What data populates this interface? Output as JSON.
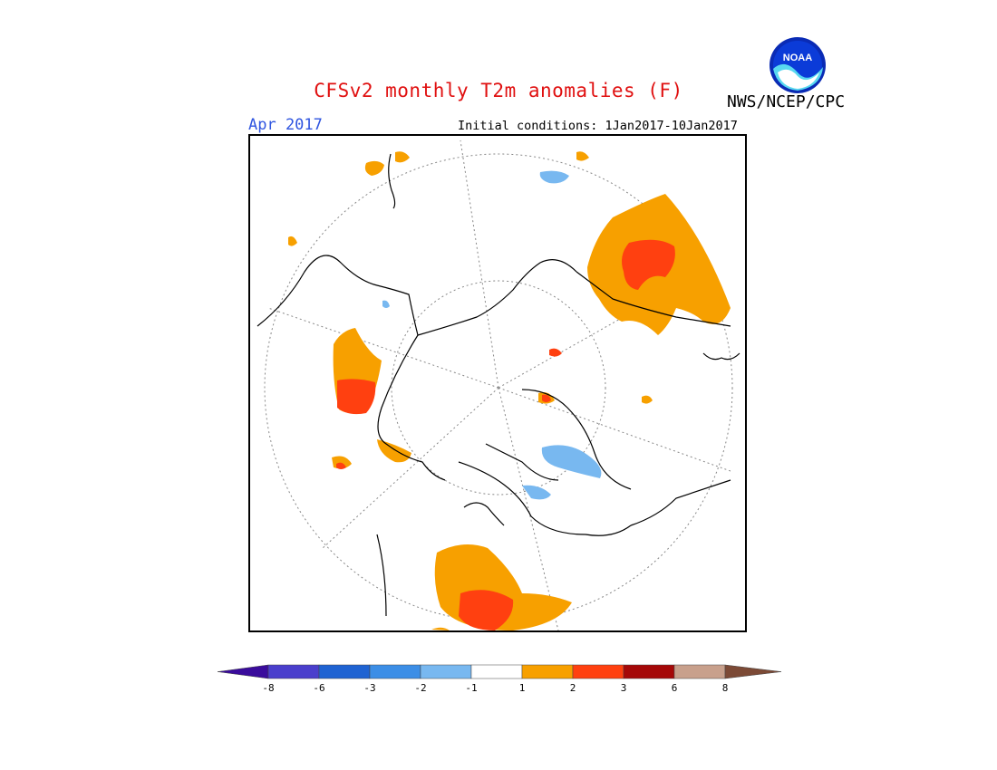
{
  "title": "CFSv2 monthly T2m anomalies (F)",
  "valid_month": "Apr 2017",
  "initial_conditions": "Initial conditions: 1Jan2017-10Jan2017",
  "agency": "NWS/NCEP/CPC",
  "logo_text": "NOAA",
  "colorbar": {
    "colors": [
      "#3a0c9c",
      "#4a3fcc",
      "#1f63d2",
      "#3c8ee6",
      "#78b8f0",
      "#ffffff",
      "#f7a000",
      "#ff4010",
      "#a50808",
      "#c8a08c",
      "#7c4a36"
    ],
    "ticks": [
      "-8",
      "-6",
      "-3",
      "-2",
      "-1",
      "1",
      "2",
      "3",
      "6",
      "8"
    ]
  }
}
